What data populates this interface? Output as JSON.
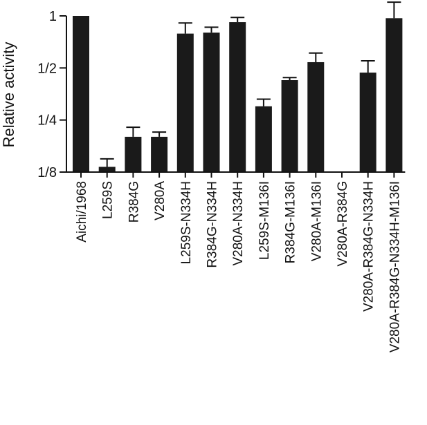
{
  "chart_data": {
    "type": "bar",
    "title": "",
    "xlabel": "",
    "ylabel": "Relative activity",
    "yscale": "log2",
    "ylim": [
      0.125,
      1.0
    ],
    "yticks": [
      {
        "value": 1.0,
        "label": "1"
      },
      {
        "value": 0.5,
        "label": "1/2"
      },
      {
        "value": 0.25,
        "label": "1/4"
      },
      {
        "value": 0.125,
        "label": "1/8"
      }
    ],
    "grid": false,
    "legend": "none",
    "bar_color": "#1a1a1a",
    "categories": [
      "Aichi/1968",
      "L259S",
      "R384G",
      "V280A",
      "L259S-N334H",
      "R384G-N334H",
      "V280A-N334H",
      "L259S-M136I",
      "R384G-M136I",
      "V280A-M136I",
      "V280A-R384G",
      "V280A-R384G-N334H",
      "V280A-R384G-N334H-M136I"
    ],
    "values": [
      1.0,
      0.134,
      0.2,
      0.2,
      0.79,
      0.8,
      0.92,
      0.3,
      0.425,
      0.54,
      null,
      0.47,
      0.97
    ],
    "error_upper": [
      null,
      0.149,
      0.227,
      0.213,
      0.91,
      0.86,
      0.98,
      0.33,
      0.44,
      0.61,
      null,
      0.55,
      1.2
    ]
  }
}
